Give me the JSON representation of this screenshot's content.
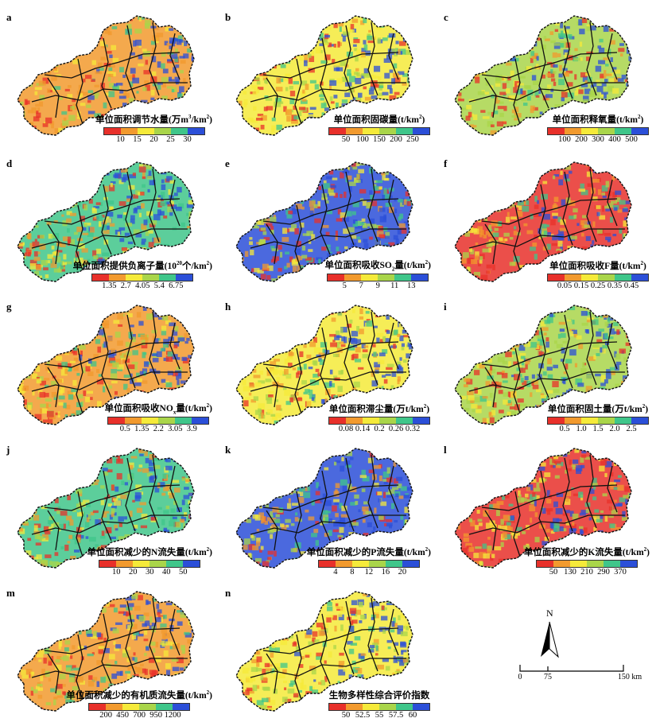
{
  "ramp_colors": [
    "#e8302a",
    "#f29a2e",
    "#f5ea3a",
    "#a9d54a",
    "#3fc68a",
    "#2b4fd8"
  ],
  "panels": [
    {
      "letter": "a",
      "title_pre": "单位面积调节水量(万m",
      "title_sup": "3",
      "title_post": "/km",
      "title_sup2": "2",
      "title_end": ")",
      "ticks": [
        "10",
        "15",
        "20",
        "25",
        "30"
      ]
    },
    {
      "letter": "b",
      "title_pre": "单位面积固碳量(t/km",
      "title_sup": "2",
      "title_post": ")",
      "title_sup2": "",
      "title_end": "",
      "ticks": [
        "50",
        "100",
        "150",
        "200",
        "250"
      ]
    },
    {
      "letter": "c",
      "title_pre": "单位面积释氧量(t/km",
      "title_sup": "2",
      "title_post": ")",
      "title_sup2": "",
      "title_end": "",
      "ticks": [
        "100",
        "200",
        "300",
        "400",
        "500"
      ]
    },
    {
      "letter": "d",
      "title_pre": "单位面积提供负离子量(10",
      "title_sup": "20",
      "title_post": "个/km",
      "title_sup2": "2",
      "title_end": ")",
      "ticks": [
        "1.35",
        "2.7",
        "4.05",
        "5.4",
        "6.75"
      ]
    },
    {
      "letter": "e",
      "title_pre": "单位面积吸收SO",
      "title_sub": "2",
      "title_post": "量(t/km",
      "title_sup2": "2",
      "title_end": ")",
      "ticks": [
        "5",
        "7",
        "9",
        "11",
        "13"
      ]
    },
    {
      "letter": "f",
      "title_pre": "单位面积吸收F量(t/km",
      "title_sup": "2",
      "title_post": ")",
      "title_sup2": "",
      "title_end": "",
      "ticks": [
        "0.05",
        "0.15",
        "0.25",
        "0.35",
        "0.45"
      ]
    },
    {
      "letter": "g",
      "title_pre": "单位面积吸收NO",
      "title_sub": "x",
      "title_post": "量(t/km",
      "title_sup2": "2",
      "title_end": ")",
      "ticks": [
        "0.5",
        "1.35",
        "2.2",
        "3.05",
        "3.9"
      ]
    },
    {
      "letter": "h",
      "title_pre": "单位面积滞尘量(万t/km",
      "title_sup": "2",
      "title_post": ")",
      "title_sup2": "",
      "title_end": "",
      "ticks": [
        "0.08",
        "0.14",
        "0.2",
        "0.26",
        "0.32"
      ]
    },
    {
      "letter": "i",
      "title_pre": "单位面积固土量(万t/km",
      "title_sup": "2",
      "title_post": ")",
      "title_sup2": "",
      "title_end": "",
      "ticks": [
        "0.5",
        "1.0",
        "1.5",
        "2.0",
        "2.5"
      ]
    },
    {
      "letter": "j",
      "title_pre": "单位面积减少的N流失量(t/km",
      "title_sup": "2",
      "title_post": ")",
      "title_sup2": "",
      "title_end": "",
      "ticks": [
        "10",
        "20",
        "30",
        "40",
        "50"
      ]
    },
    {
      "letter": "k",
      "title_pre": "单位面积减少的P流失量(t/km",
      "title_sup": "2",
      "title_post": ")",
      "title_sup2": "",
      "title_end": "",
      "ticks": [
        "4",
        "8",
        "12",
        "16",
        "20"
      ]
    },
    {
      "letter": "l",
      "title_pre": "单位面积减少的K流失量(t/km",
      "title_sup": "2",
      "title_post": ")",
      "title_sup2": "",
      "title_end": "",
      "ticks": [
        "50",
        "130",
        "210",
        "290",
        "370"
      ]
    },
    {
      "letter": "m",
      "title_pre": "单位面积减少的有机质流失量(t/km",
      "title_sup": "2",
      "title_post": ")",
      "title_sup2": "",
      "title_end": "",
      "ticks": [
        "200",
        "450",
        "700",
        "950",
        "1200"
      ]
    },
    {
      "letter": "n",
      "title_pre": "生物多样性综合评价指数",
      "title_sup": "",
      "title_post": "",
      "title_sup2": "",
      "title_end": "",
      "ticks": [
        "50",
        "52.5",
        "55",
        "57.5",
        "60"
      ]
    }
  ],
  "scale": {
    "north": "N",
    "labels": [
      "0",
      "75",
      "150 km"
    ]
  }
}
